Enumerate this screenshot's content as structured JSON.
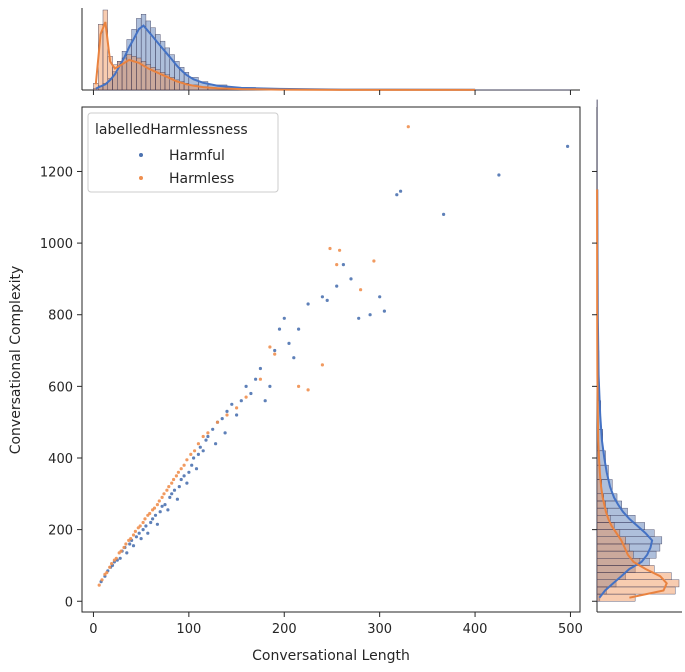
{
  "chart_data": {
    "type": "scatter",
    "xlabel": "Conversational Length",
    "ylabel": "Conversational Complexity",
    "xlim": [
      -12,
      510
    ],
    "ylim": [
      -30,
      1380
    ],
    "xticks": [
      0,
      100,
      200,
      300,
      400,
      500
    ],
    "yticks": [
      0,
      200,
      400,
      600,
      800,
      1000,
      1200
    ],
    "grid": false,
    "legend": {
      "title": "labelledHarmlessness",
      "placement": "top-left",
      "entries": [
        "Harmful",
        "Harmless"
      ]
    },
    "colors": {
      "Harmful": "#4c72b0",
      "Harmless": "#ef8f4f",
      "kde_Harmful": "#4472c4",
      "kde_Harmless": "#e9823f"
    },
    "series": [
      {
        "name": "Harmful",
        "points": [
          [
            8,
            55
          ],
          [
            12,
            70
          ],
          [
            15,
            85
          ],
          [
            18,
            95
          ],
          [
            20,
            100
          ],
          [
            22,
            110
          ],
          [
            25,
            115
          ],
          [
            28,
            120
          ],
          [
            30,
            140
          ],
          [
            33,
            150
          ],
          [
            35,
            135
          ],
          [
            38,
            160
          ],
          [
            40,
            170
          ],
          [
            42,
            155
          ],
          [
            45,
            180
          ],
          [
            48,
            190
          ],
          [
            50,
            175
          ],
          [
            52,
            200
          ],
          [
            55,
            210
          ],
          [
            57,
            190
          ],
          [
            60,
            220
          ],
          [
            62,
            230
          ],
          [
            65,
            240
          ],
          [
            67,
            215
          ],
          [
            70,
            250
          ],
          [
            72,
            265
          ],
          [
            75,
            270
          ],
          [
            78,
            255
          ],
          [
            80,
            290
          ],
          [
            82,
            300
          ],
          [
            85,
            310
          ],
          [
            88,
            285
          ],
          [
            90,
            320
          ],
          [
            92,
            340
          ],
          [
            95,
            350
          ],
          [
            98,
            330
          ],
          [
            100,
            360
          ],
          [
            103,
            380
          ],
          [
            105,
            400
          ],
          [
            108,
            370
          ],
          [
            110,
            410
          ],
          [
            112,
            430
          ],
          [
            115,
            420
          ],
          [
            118,
            450
          ],
          [
            120,
            460
          ],
          [
            125,
            480
          ],
          [
            128,
            440
          ],
          [
            130,
            500
          ],
          [
            135,
            510
          ],
          [
            138,
            470
          ],
          [
            140,
            530
          ],
          [
            145,
            550
          ],
          [
            150,
            520
          ],
          [
            155,
            560
          ],
          [
            160,
            600
          ],
          [
            165,
            580
          ],
          [
            170,
            620
          ],
          [
            175,
            650
          ],
          [
            180,
            560
          ],
          [
            185,
            600
          ],
          [
            190,
            700
          ],
          [
            195,
            760
          ],
          [
            200,
            790
          ],
          [
            205,
            720
          ],
          [
            210,
            680
          ],
          [
            215,
            760
          ],
          [
            225,
            830
          ],
          [
            240,
            850
          ],
          [
            245,
            840
          ],
          [
            255,
            880
          ],
          [
            262,
            940
          ],
          [
            270,
            900
          ],
          [
            278,
            790
          ],
          [
            290,
            800
          ],
          [
            300,
            850
          ],
          [
            305,
            810
          ],
          [
            318,
            1135
          ],
          [
            322,
            1145
          ],
          [
            367,
            1080
          ],
          [
            425,
            1190
          ],
          [
            497,
            1270
          ]
        ]
      },
      {
        "name": "Harmless",
        "points": [
          [
            6,
            45
          ],
          [
            9,
            60
          ],
          [
            12,
            75
          ],
          [
            14,
            80
          ],
          [
            17,
            95
          ],
          [
            19,
            105
          ],
          [
            22,
            115
          ],
          [
            24,
            120
          ],
          [
            27,
            135
          ],
          [
            29,
            140
          ],
          [
            32,
            150
          ],
          [
            34,
            160
          ],
          [
            37,
            170
          ],
          [
            39,
            175
          ],
          [
            42,
            185
          ],
          [
            44,
            195
          ],
          [
            47,
            205
          ],
          [
            49,
            210
          ],
          [
            52,
            220
          ],
          [
            54,
            230
          ],
          [
            57,
            240
          ],
          [
            59,
            245
          ],
          [
            62,
            255
          ],
          [
            64,
            260
          ],
          [
            67,
            270
          ],
          [
            69,
            280
          ],
          [
            72,
            290
          ],
          [
            74,
            300
          ],
          [
            77,
            310
          ],
          [
            79,
            320
          ],
          [
            82,
            330
          ],
          [
            84,
            340
          ],
          [
            87,
            350
          ],
          [
            89,
            360
          ],
          [
            92,
            370
          ],
          [
            95,
            380
          ],
          [
            98,
            395
          ],
          [
            102,
            410
          ],
          [
            106,
            420
          ],
          [
            110,
            440
          ],
          [
            115,
            460
          ],
          [
            120,
            470
          ],
          [
            130,
            500
          ],
          [
            140,
            520
          ],
          [
            150,
            540
          ],
          [
            160,
            570
          ],
          [
            175,
            620
          ],
          [
            185,
            710
          ],
          [
            190,
            690
          ],
          [
            215,
            600
          ],
          [
            225,
            590
          ],
          [
            240,
            660
          ],
          [
            248,
            985
          ],
          [
            255,
            940
          ],
          [
            258,
            980
          ],
          [
            280,
            870
          ],
          [
            294,
            950
          ],
          [
            330,
            1325
          ]
        ]
      }
    ],
    "marginal_x": {
      "bins": [
        "0-5",
        "5-10",
        "10-15",
        "15-20",
        "20-25",
        "25-30",
        "30-35",
        "35-40",
        "40-45",
        "45-50",
        "50-55",
        "55-60",
        "60-65",
        "65-70",
        "70-75",
        "75-80",
        "80-85",
        "85-90",
        "90-95",
        "95-100",
        "100-110",
        "110-120",
        "120-140",
        "140-170",
        "170-220",
        "220-300",
        "300-500"
      ],
      "Harmful": [
        2,
        5,
        8,
        14,
        22,
        34,
        46,
        60,
        72,
        85,
        90,
        82,
        74,
        66,
        58,
        50,
        42,
        34,
        27,
        21,
        15,
        10,
        6,
        3,
        1.5,
        0.6,
        0.3
      ],
      "Harmless": [
        8,
        78,
        95,
        40,
        30,
        34,
        38,
        42,
        40,
        38,
        34,
        30,
        27,
        24,
        21,
        18,
        15,
        12,
        10,
        8,
        6,
        4,
        2.5,
        1.2,
        0.5,
        0.2,
        0.1
      ]
    },
    "marginal_y": {
      "bins": [
        "0-20",
        "20-40",
        "40-60",
        "60-80",
        "80-100",
        "100-120",
        "120-140",
        "140-160",
        "160-180",
        "180-200",
        "200-220",
        "220-240",
        "240-260",
        "260-280",
        "280-300",
        "300-340",
        "340-380",
        "380-420",
        "420-480",
        "480-560",
        "560-700",
        "700-900",
        "900-1400"
      ],
      "Harmful": [
        3,
        10,
        20,
        30,
        40,
        55,
        62,
        66,
        68,
        60,
        50,
        40,
        32,
        26,
        21,
        16,
        12,
        9,
        6,
        4,
        2,
        1,
        0.4
      ],
      "Harmless": [
        40,
        82,
        86,
        78,
        60,
        45,
        38,
        34,
        30,
        24,
        18,
        14,
        11,
        9,
        7,
        5,
        3.5,
        2.5,
        1.5,
        1,
        0.5,
        0.2,
        0.1
      ]
    }
  }
}
